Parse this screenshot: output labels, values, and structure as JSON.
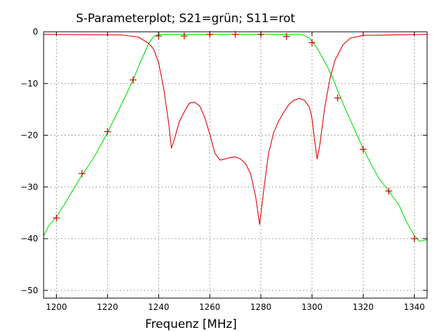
{
  "chart_data": {
    "type": "line",
    "title": "S-Parameterplot; S21=grün; S11=rot",
    "xlabel": "Frequenz [MHz]",
    "ylabel": "",
    "xlim": [
      1195,
      1345
    ],
    "ylim": [
      -51.5,
      0
    ],
    "x_ticks": [
      1200,
      1220,
      1240,
      1260,
      1280,
      1300,
      1320,
      1340
    ],
    "y_ticks": [
      0,
      -10,
      -20,
      -30,
      -40,
      -50
    ],
    "grid": true,
    "legend": "none",
    "series": [
      {
        "color": "#00e000",
        "points": [
          [
            1195,
            -39.5
          ],
          [
            1197,
            -37.5
          ],
          [
            1200,
            -35.8
          ],
          [
            1203,
            -33.5
          ],
          [
            1206,
            -31.0
          ],
          [
            1209,
            -28.5
          ],
          [
            1212,
            -26.3
          ],
          [
            1215,
            -24.0
          ],
          [
            1218,
            -21.3
          ],
          [
            1220,
            -19.5
          ],
          [
            1223,
            -16.5
          ],
          [
            1226,
            -13.5
          ],
          [
            1230,
            -9.3
          ],
          [
            1233,
            -5.7
          ],
          [
            1236,
            -2.4
          ],
          [
            1238,
            -0.9
          ],
          [
            1240,
            -0.5
          ],
          [
            1250,
            -0.5
          ],
          [
            1260,
            -0.5
          ],
          [
            1270,
            -0.5
          ],
          [
            1280,
            -0.5
          ],
          [
            1290,
            -0.5
          ],
          [
            1296,
            -0.5
          ],
          [
            1299,
            -1.2
          ],
          [
            1302,
            -3.2
          ],
          [
            1305,
            -5.8
          ],
          [
            1308,
            -8.8
          ],
          [
            1310,
            -11.3
          ],
          [
            1313,
            -14.9
          ],
          [
            1316,
            -18.2
          ],
          [
            1320,
            -22.6
          ],
          [
            1323,
            -25.5
          ],
          [
            1326,
            -28.2
          ],
          [
            1330,
            -30.8
          ],
          [
            1334,
            -33.5
          ],
          [
            1337,
            -36.8
          ],
          [
            1340,
            -39.4
          ],
          [
            1342,
            -40.5
          ],
          [
            1345,
            -40.2
          ]
        ],
        "markers": [
          [
            1200,
            -36
          ],
          [
            1210,
            -27.4
          ],
          [
            1220,
            -19.3
          ],
          [
            1230,
            -9.3
          ],
          [
            1240,
            -0.8
          ],
          [
            1250,
            -0.8
          ],
          [
            1260,
            -0.5
          ],
          [
            1270,
            -0.5
          ],
          [
            1280,
            -0.5
          ],
          [
            1290,
            -0.9
          ],
          [
            1300,
            -2.1
          ],
          [
            1310,
            -12.8
          ],
          [
            1320,
            -22.7
          ],
          [
            1330,
            -30.8
          ],
          [
            1340,
            -40
          ]
        ]
      },
      {
        "color": "#e00000",
        "points": [
          [
            1195,
            -0.5
          ],
          [
            1225,
            -0.6
          ],
          [
            1232,
            -1.0
          ],
          [
            1236,
            -2.2
          ],
          [
            1238,
            -3.3
          ],
          [
            1240,
            -6.0
          ],
          [
            1242,
            -11.0
          ],
          [
            1244,
            -18.0
          ],
          [
            1245,
            -22.5
          ],
          [
            1246,
            -21.0
          ],
          [
            1248,
            -17.5
          ],
          [
            1250,
            -15.5
          ],
          [
            1252,
            -13.8
          ],
          [
            1254,
            -13.6
          ],
          [
            1256,
            -14.3
          ],
          [
            1258,
            -16.5
          ],
          [
            1260,
            -19.8
          ],
          [
            1262,
            -23.5
          ],
          [
            1264,
            -24.8
          ],
          [
            1266,
            -24.6
          ],
          [
            1268,
            -24.3
          ],
          [
            1270,
            -24.2
          ],
          [
            1272,
            -24.6
          ],
          [
            1274,
            -25.5
          ],
          [
            1276,
            -27.5
          ],
          [
            1278,
            -32.0
          ],
          [
            1279.5,
            -37.3
          ],
          [
            1281,
            -31.0
          ],
          [
            1283,
            -23.5
          ],
          [
            1285,
            -19.5
          ],
          [
            1287,
            -17.2
          ],
          [
            1289,
            -15.5
          ],
          [
            1291,
            -14.0
          ],
          [
            1293,
            -13.2
          ],
          [
            1295,
            -12.9
          ],
          [
            1297,
            -13.2
          ],
          [
            1299,
            -14.6
          ],
          [
            1300,
            -16.8
          ],
          [
            1301,
            -21.0
          ],
          [
            1302,
            -24.6
          ],
          [
            1303,
            -22.0
          ],
          [
            1305,
            -14.5
          ],
          [
            1307,
            -9.0
          ],
          [
            1309,
            -5.5
          ],
          [
            1312,
            -2.6
          ],
          [
            1315,
            -1.2
          ],
          [
            1320,
            -0.7
          ],
          [
            1345,
            -0.5
          ]
        ],
        "markers": []
      }
    ]
  }
}
